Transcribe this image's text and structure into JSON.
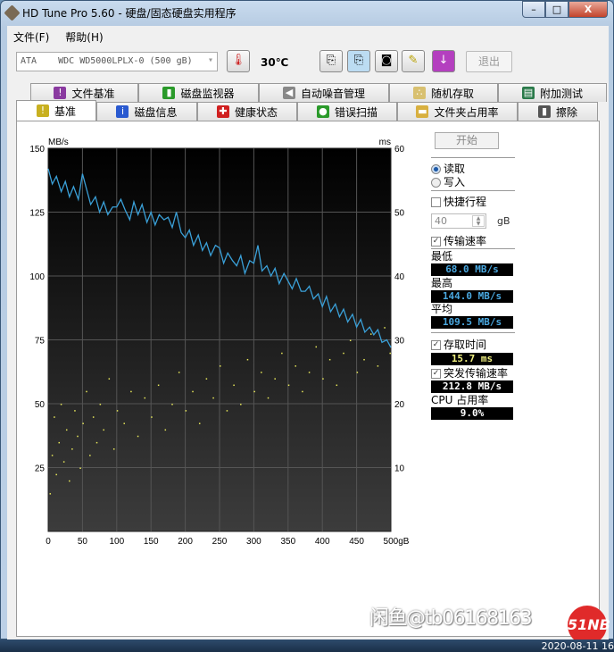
{
  "window": {
    "title": "HD Tune Pro 5.60 - 硬盘/固态硬盘实用程序",
    "minimize": "–",
    "maximize": "□",
    "close": "X"
  },
  "menu": [
    "文件(F)",
    "帮助(H)"
  ],
  "toolbar": {
    "drive": "ATA    WDC WD5000LPLX-0 (500 gB)",
    "temperature": "30℃",
    "exit": "退出"
  },
  "tabs_top": [
    {
      "label": "文件基准",
      "icon": "file-benchmark-icon"
    },
    {
      "label": "磁盘监视器",
      "icon": "disk-monitor-icon"
    },
    {
      "label": "自动噪音管理",
      "icon": "speaker-icon"
    },
    {
      "label": "随机存取",
      "icon": "random-access-icon"
    },
    {
      "label": "附加测试",
      "icon": "extra-tests-icon"
    }
  ],
  "tabs_bottom": [
    {
      "label": "基准",
      "icon": "benchmark-icon",
      "active": true
    },
    {
      "label": "磁盘信息",
      "icon": "info-icon"
    },
    {
      "label": "健康状态",
      "icon": "health-icon"
    },
    {
      "label": "错误扫描",
      "icon": "error-scan-icon"
    },
    {
      "label": "文件夹占用率",
      "icon": "folder-icon"
    },
    {
      "label": "擦除",
      "icon": "trash-icon"
    }
  ],
  "side": {
    "start": "开始",
    "read": "读取",
    "write": "写入",
    "short_stroke": "快捷行程",
    "short_stroke_value": "40",
    "short_stroke_unit": "gB",
    "transfer_rate": "传输速率",
    "min_label": "最低",
    "min": "68.0 MB/s",
    "max_label": "最高",
    "max": "144.0 MB/s",
    "avg_label": "平均",
    "avg": "109.5 MB/s",
    "access_time": "存取时间",
    "access": "15.7 ms",
    "burst": "突发传输速率",
    "burst_value": "212.8 MB/s",
    "cpu_label": "CPU 占用率",
    "cpu": "9.0%"
  },
  "colors": {
    "transfer": "#3aa0d8",
    "access": "#e8e85a",
    "value_blue": "#4aa8e0",
    "value_yellow": "#f0f080",
    "value_white": "#ffffff"
  },
  "chart_data": {
    "type": "line",
    "ylabel_left": "MB/s",
    "ylabel_right": "ms",
    "xlabel_unit": "gB",
    "xlim": [
      0,
      500
    ],
    "ylim_left": [
      0,
      150
    ],
    "ylim_right": [
      0,
      60
    ],
    "x_ticks": [
      "0",
      "50",
      "100",
      "150",
      "200",
      "250",
      "300",
      "350",
      "400",
      "450",
      "500gB"
    ],
    "y_ticks_left": [
      "25",
      "50",
      "75",
      "100",
      "125",
      "150"
    ],
    "y_ticks_right": [
      "10",
      "20",
      "30",
      "40",
      "50",
      "60"
    ],
    "grid": true,
    "transfer_rate": {
      "x": [
        0,
        6,
        12,
        19,
        25,
        31,
        37,
        44,
        50,
        56,
        62,
        69,
        75,
        81,
        87,
        94,
        100,
        106,
        112,
        119,
        125,
        131,
        137,
        144,
        150,
        156,
        162,
        169,
        175,
        181,
        187,
        194,
        200,
        206,
        212,
        219,
        225,
        231,
        237,
        244,
        250,
        256,
        262,
        269,
        275,
        281,
        287,
        294,
        300,
        306,
        312,
        319,
        325,
        331,
        337,
        344,
        350,
        356,
        362,
        369,
        375,
        381,
        387,
        394,
        400,
        406,
        412,
        419,
        425,
        431,
        437,
        444,
        450,
        456,
        462,
        469,
        475,
        481,
        487,
        494,
        500
      ],
      "y": [
        142,
        136,
        139,
        133,
        137,
        131,
        135,
        130,
        140,
        134,
        128,
        131,
        125,
        129,
        124,
        127,
        127,
        130,
        126,
        122,
        129,
        124,
        128,
        121,
        125,
        120,
        124,
        122,
        123,
        119,
        125,
        117,
        115,
        118,
        112,
        116,
        110,
        113,
        108,
        112,
        111,
        105,
        109,
        106,
        104,
        108,
        101,
        106,
        105,
        112,
        102,
        104,
        100,
        103,
        97,
        101,
        98,
        95,
        99,
        94,
        94,
        96,
        91,
        93,
        88,
        92,
        86,
        89,
        84,
        87,
        82,
        85,
        80,
        83,
        78,
        80,
        77,
        79,
        74,
        75,
        72
      ]
    },
    "access_time": {
      "x": [
        2,
        5,
        8,
        11,
        15,
        18,
        22,
        26,
        30,
        34,
        38,
        42,
        46,
        50,
        55,
        60,
        65,
        70,
        75,
        80,
        88,
        95,
        100,
        110,
        120,
        130,
        140,
        150,
        160,
        170,
        180,
        190,
        200,
        210,
        220,
        230,
        240,
        250,
        260,
        270,
        280,
        290,
        300,
        310,
        320,
        330,
        340,
        350,
        360,
        370,
        380,
        390,
        400,
        410,
        420,
        430,
        440,
        450,
        460,
        470,
        480,
        490,
        498
      ],
      "y": [
        6,
        12,
        18,
        9,
        14,
        20,
        11,
        16,
        8,
        13,
        19,
        15,
        10,
        17,
        22,
        12,
        18,
        14,
        20,
        16,
        24,
        13,
        19,
        17,
        22,
        15,
        21,
        18,
        23,
        16,
        20,
        25,
        19,
        22,
        17,
        24,
        21,
        26,
        19,
        23,
        20,
        27,
        22,
        25,
        21,
        24,
        28,
        23,
        26,
        22,
        25,
        29,
        24,
        27,
        23,
        28,
        30,
        25,
        27,
        31,
        26,
        32,
        28
      ]
    }
  },
  "watermark": "闲鱼@tb06168163",
  "logo": "51NB",
  "clock": "2020-08-11 16"
}
